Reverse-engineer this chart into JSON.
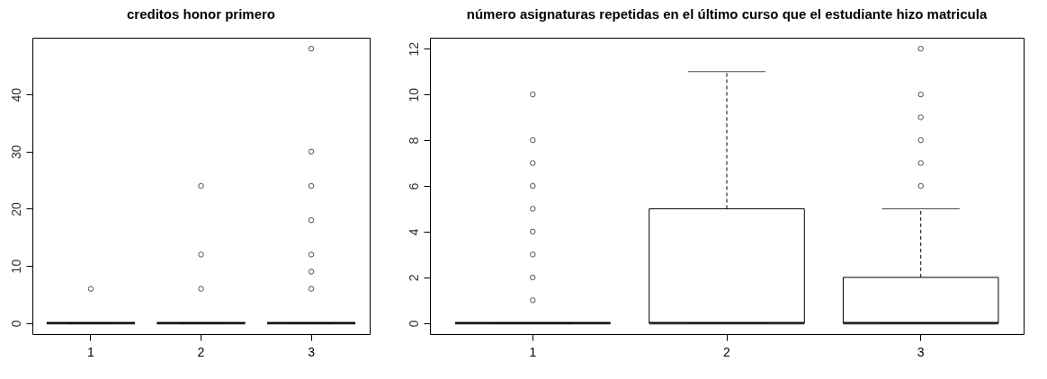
{
  "chart_data": [
    {
      "type": "box",
      "title": "creditos honor primero",
      "categories": [
        "1",
        "2",
        "3"
      ],
      "boxes": [
        {
          "low": 0,
          "q1": 0,
          "median": 0,
          "q3": 0,
          "high": 0,
          "outliers": [
            6
          ]
        },
        {
          "low": 0,
          "q1": 0,
          "median": 0,
          "q3": 0,
          "high": 0,
          "outliers": [
            6,
            12,
            24
          ]
        },
        {
          "low": 0,
          "q1": 0,
          "median": 0,
          "q3": 0,
          "high": 0,
          "outliers": [
            6,
            9,
            12,
            18,
            24,
            30,
            48
          ]
        }
      ],
      "ylim": [
        -1.92,
        49.92
      ],
      "yticks": [
        0,
        10,
        20,
        30,
        40
      ],
      "grid": false
    },
    {
      "type": "box",
      "title": "número asignaturas repetidas en el último curso que el estudiante hizo matricula",
      "categories": [
        "1",
        "2",
        "3"
      ],
      "boxes": [
        {
          "low": 0,
          "q1": 0,
          "median": 0,
          "q3": 0,
          "high": 0,
          "outliers": [
            1,
            2,
            3,
            4,
            5,
            6,
            7,
            8,
            10
          ]
        },
        {
          "low": 0,
          "q1": 0,
          "median": 0,
          "q3": 5,
          "high": 11
        },
        {
          "low": 0,
          "q1": 0,
          "median": 0,
          "q3": 2,
          "high": 5,
          "outliers": [
            6,
            7,
            8,
            9,
            10,
            12
          ]
        }
      ],
      "ylim": [
        -0.48,
        12.48
      ],
      "yticks": [
        0,
        2,
        4,
        6,
        8,
        10,
        12
      ],
      "grid": false
    }
  ]
}
